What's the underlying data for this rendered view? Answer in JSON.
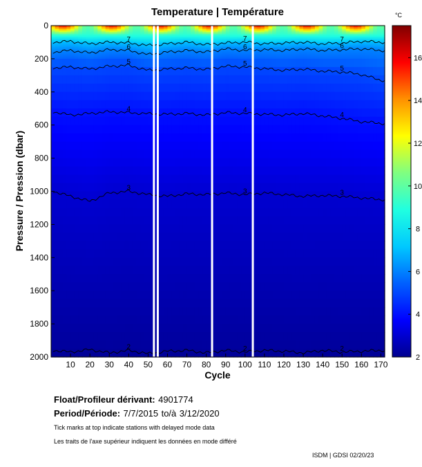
{
  "chart_data": {
    "type": "heatmap",
    "title": "Temperature | Température",
    "xlabel": "Cycle",
    "ylabel": "Pressure / Pression (dbar)",
    "xlim": [
      0,
      172
    ],
    "ylim": [
      0,
      2000
    ],
    "y_reversed": true,
    "xticks": [
      10,
      20,
      30,
      40,
      50,
      60,
      70,
      80,
      90,
      100,
      110,
      120,
      130,
      140,
      150,
      160,
      170
    ],
    "yticks": [
      0,
      200,
      400,
      600,
      800,
      1000,
      1200,
      1400,
      1600,
      1800,
      2000
    ],
    "colorbar": {
      "unit": "°C",
      "range": [
        2,
        17.5
      ],
      "ticks": [
        2,
        4,
        6,
        8,
        10,
        12,
        14,
        16
      ]
    },
    "colormap": [
      "#00008f",
      "#0000ff",
      "#0060ff",
      "#00c8ff",
      "#20ffe0",
      "#80ff80",
      "#ffff00",
      "#ff9000",
      "#ff0000",
      "#800000"
    ],
    "data_gaps_cycles": [
      53,
      55,
      83,
      104
    ],
    "isotherms": [
      {
        "level": 7,
        "depth": [
          100,
          95,
          110,
          100,
          105,
          120,
          110,
          100,
          115,
          105,
          100,
          110,
          105,
          100,
          110,
          105,
          95,
          100
        ]
      },
      {
        "level": 6,
        "depth": [
          160,
          150,
          165,
          145,
          150,
          175,
          160,
          150,
          160,
          140,
          150,
          145,
          150,
          140,
          150,
          145,
          140,
          150
        ]
      },
      {
        "level": 5,
        "depth": [
          255,
          250,
          262,
          245,
          240,
          270,
          262,
          255,
          265,
          245,
          250,
          260,
          270,
          262,
          275,
          280,
          295,
          330
        ]
      },
      {
        "level": 4,
        "depth": [
          520,
          540,
          530,
          520,
          525,
          532,
          535,
          530,
          540,
          525,
          530,
          535,
          540,
          530,
          545,
          560,
          580,
          590
        ]
      },
      {
        "level": 3,
        "depth": [
          1000,
          1030,
          1060,
          1010,
          1000,
          1020,
          1030,
          1015,
          1020,
          1010,
          1020,
          1010,
          1020,
          1030,
          1025,
          1030,
          1040,
          1050
        ]
      },
      {
        "level": 2.2,
        "depth": [
          1960,
          1970,
          1955,
          1975,
          1960,
          1980,
          1965,
          1960,
          1975,
          1960,
          1970,
          1960,
          1965,
          1975,
          1960,
          1970,
          1965,
          1960
        ]
      }
    ],
    "isotherm_cycles": [
      1,
      10,
      20,
      30,
      40,
      50,
      60,
      70,
      80,
      90,
      100,
      110,
      120,
      130,
      140,
      150,
      160,
      170
    ],
    "isotherm_label_text": "6"
  },
  "float_label": "Float/Profileur dérivant:",
  "float_id": "4901774",
  "period_label": "Period/Période:",
  "period_start": "7/7/2015",
  "period_to": "to/à",
  "period_end": "3/12/2020",
  "note_en": "Tick marks at top indicate stations with delayed mode data",
  "note_fr": "Les traits de l'axe supérieur indiquent les données en mode différé",
  "credit": "ISDM | GDSI  02/20/23"
}
